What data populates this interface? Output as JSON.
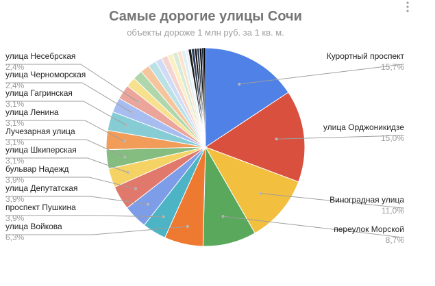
{
  "chart_data": {
    "type": "pie",
    "title": "Самые дорогие улицы Сочи",
    "subtitle": "объекты дороже 1 млн руб. за 1 кв. м.",
    "start": "top",
    "direction": "clockwise",
    "legend": "none",
    "slices": [
      {
        "name": "Курортный проспект",
        "value": 15.7,
        "label": "15,7%",
        "color": "#4f81e6",
        "side": "right"
      },
      {
        "name": "улица Орджоникидзе",
        "value": 15.0,
        "label": "15,0%",
        "color": "#d9503f",
        "side": "right"
      },
      {
        "name": "Виноградная улица",
        "value": 11.0,
        "label": "11,0%",
        "color": "#f2bf3e",
        "side": "right"
      },
      {
        "name": "переулок Морской",
        "value": 8.7,
        "label": "8,7%",
        "color": "#59a85c",
        "side": "right"
      },
      {
        "name": "улица Войкова",
        "value": 6.3,
        "label": "6,3%",
        "color": "#ee7a32",
        "side": "left"
      },
      {
        "name": "проспект Пушкина",
        "value": 3.9,
        "label": "3,9%",
        "color": "#4cb4c4",
        "side": "left"
      },
      {
        "name": "улица Депутатская",
        "value": 3.9,
        "label": "3,9%",
        "color": "#7d9de8",
        "side": "left"
      },
      {
        "name": "бульвар Надежд",
        "value": 3.9,
        "label": "3,9%",
        "color": "#e0786b",
        "side": "left"
      },
      {
        "name": "улица Шкиперская",
        "value": 3.1,
        "label": "3,1%",
        "color": "#f4d263",
        "side": "left"
      },
      {
        "name": "Лучезарная улица",
        "value": 3.1,
        "label": "3,1%",
        "color": "#85bd80",
        "side": "left"
      },
      {
        "name": "улица Ленина",
        "value": 3.1,
        "label": "3,1%",
        "color": "#f19c59",
        "side": "left"
      },
      {
        "name": "улица Гагринская",
        "value": 3.1,
        "label": "3,1%",
        "color": "#86ccd5",
        "side": "left"
      },
      {
        "name": "улица Черноморская",
        "value": 2.4,
        "label": "2,4%",
        "color": "#a7bdf0",
        "side": "left"
      },
      {
        "name": "улица Несебрская",
        "value": 2.4,
        "label": "2,4%",
        "color": "#eba59b",
        "side": "left"
      },
      {
        "name": "",
        "value": 1.6,
        "label": "",
        "color": "#f7e08e",
        "side": ""
      },
      {
        "name": "",
        "value": 1.6,
        "label": "",
        "color": "#b0d6ac",
        "side": ""
      },
      {
        "name": "",
        "value": 1.5,
        "label": "",
        "color": "#f6c59c",
        "side": ""
      },
      {
        "name": "",
        "value": 1.3,
        "label": "",
        "color": "#b9e1e6",
        "side": ""
      },
      {
        "name": "",
        "value": 1.1,
        "label": "",
        "color": "#d0dcf6",
        "side": ""
      },
      {
        "name": "",
        "value": 1.0,
        "label": "",
        "color": "#f5d3ce",
        "side": ""
      },
      {
        "name": "",
        "value": 0.9,
        "label": "",
        "color": "#fbefc6",
        "side": ""
      },
      {
        "name": "",
        "value": 0.8,
        "label": "",
        "color": "#d8ebd6",
        "side": ""
      },
      {
        "name": "",
        "value": 0.7,
        "label": "",
        "color": "#fbe3cd",
        "side": ""
      },
      {
        "name": "",
        "value": 0.6,
        "label": "",
        "color": "#dcf0f2",
        "side": ""
      },
      {
        "name": "",
        "value": 0.5,
        "label": "",
        "color": "#eef2fb",
        "side": ""
      },
      {
        "name": "",
        "value": 0.5,
        "label": "",
        "color": "#1a1a1a",
        "side": ""
      },
      {
        "name": "",
        "value": 0.5,
        "label": "",
        "color": "#2d3d5c",
        "side": ""
      },
      {
        "name": "",
        "value": 0.4,
        "label": "",
        "color": "#101010",
        "side": ""
      },
      {
        "name": "",
        "value": 0.4,
        "label": "",
        "color": "#2b3a55",
        "side": ""
      },
      {
        "name": "",
        "value": 0.4,
        "label": "",
        "color": "#0d0d0d",
        "side": ""
      },
      {
        "name": "",
        "value": 0.3,
        "label": "",
        "color": "#1e2b40",
        "side": ""
      },
      {
        "name": "",
        "value": 0.3,
        "label": "",
        "color": "#050505",
        "side": ""
      }
    ]
  },
  "menu": {
    "icon": "more-vert-icon"
  }
}
